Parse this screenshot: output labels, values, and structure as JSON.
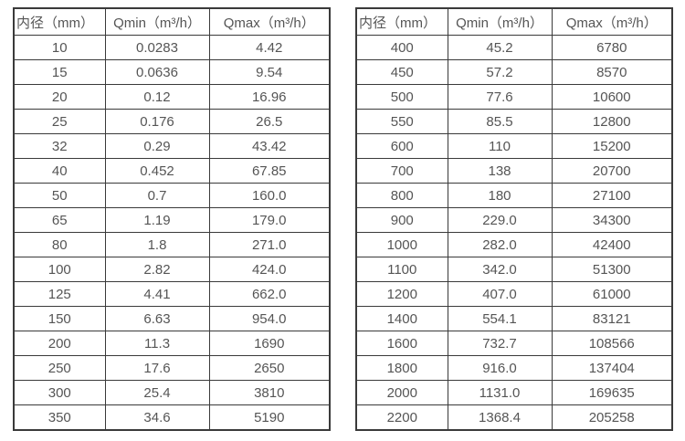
{
  "colors": {
    "border": "#3a3a3a",
    "text": "#555555",
    "background": "#ffffff"
  },
  "tables": [
    {
      "name": "flow-rate-table-small-diameters",
      "headers": [
        "内径（mm）",
        "Qmin（m³/h）",
        "Qmax（m³/h）"
      ],
      "rows": [
        [
          "10",
          "0.0283",
          "4.42"
        ],
        [
          "15",
          "0.0636",
          "9.54"
        ],
        [
          "20",
          "0.12",
          "16.96"
        ],
        [
          "25",
          "0.176",
          "26.5"
        ],
        [
          "32",
          "0.29",
          "43.42"
        ],
        [
          "40",
          "0.452",
          "67.85"
        ],
        [
          "50",
          "0.7",
          "160.0"
        ],
        [
          "65",
          "1.19",
          "179.0"
        ],
        [
          "80",
          "1.8",
          "271.0"
        ],
        [
          "100",
          "2.82",
          "424.0"
        ],
        [
          "125",
          "4.41",
          "662.0"
        ],
        [
          "150",
          "6.63",
          "954.0"
        ],
        [
          "200",
          "11.3",
          "1690"
        ],
        [
          "250",
          "17.6",
          "2650"
        ],
        [
          "300",
          "25.4",
          "3810"
        ],
        [
          "350",
          "34.6",
          "5190"
        ]
      ]
    },
    {
      "name": "flow-rate-table-large-diameters",
      "headers": [
        "内径（mm）",
        "Qmin（m³/h）",
        "Qmax（m³/h）"
      ],
      "rows": [
        [
          "400",
          "45.2",
          "6780"
        ],
        [
          "450",
          "57.2",
          "8570"
        ],
        [
          "500",
          "77.6",
          "10600"
        ],
        [
          "550",
          "85.5",
          "12800"
        ],
        [
          "600",
          "110",
          "15200"
        ],
        [
          "700",
          "138",
          "20700"
        ],
        [
          "800",
          "180",
          "27100"
        ],
        [
          "900",
          "229.0",
          "34300"
        ],
        [
          "1000",
          "282.0",
          "42400"
        ],
        [
          "1100",
          "342.0",
          "51300"
        ],
        [
          "1200",
          "407.0",
          "61000"
        ],
        [
          "1400",
          "554.1",
          "83121"
        ],
        [
          "1600",
          "732.7",
          "108566"
        ],
        [
          "1800",
          "916.0",
          "137404"
        ],
        [
          "2000",
          "1131.0",
          "169635"
        ],
        [
          "2200",
          "1368.4",
          "205258"
        ]
      ]
    }
  ]
}
